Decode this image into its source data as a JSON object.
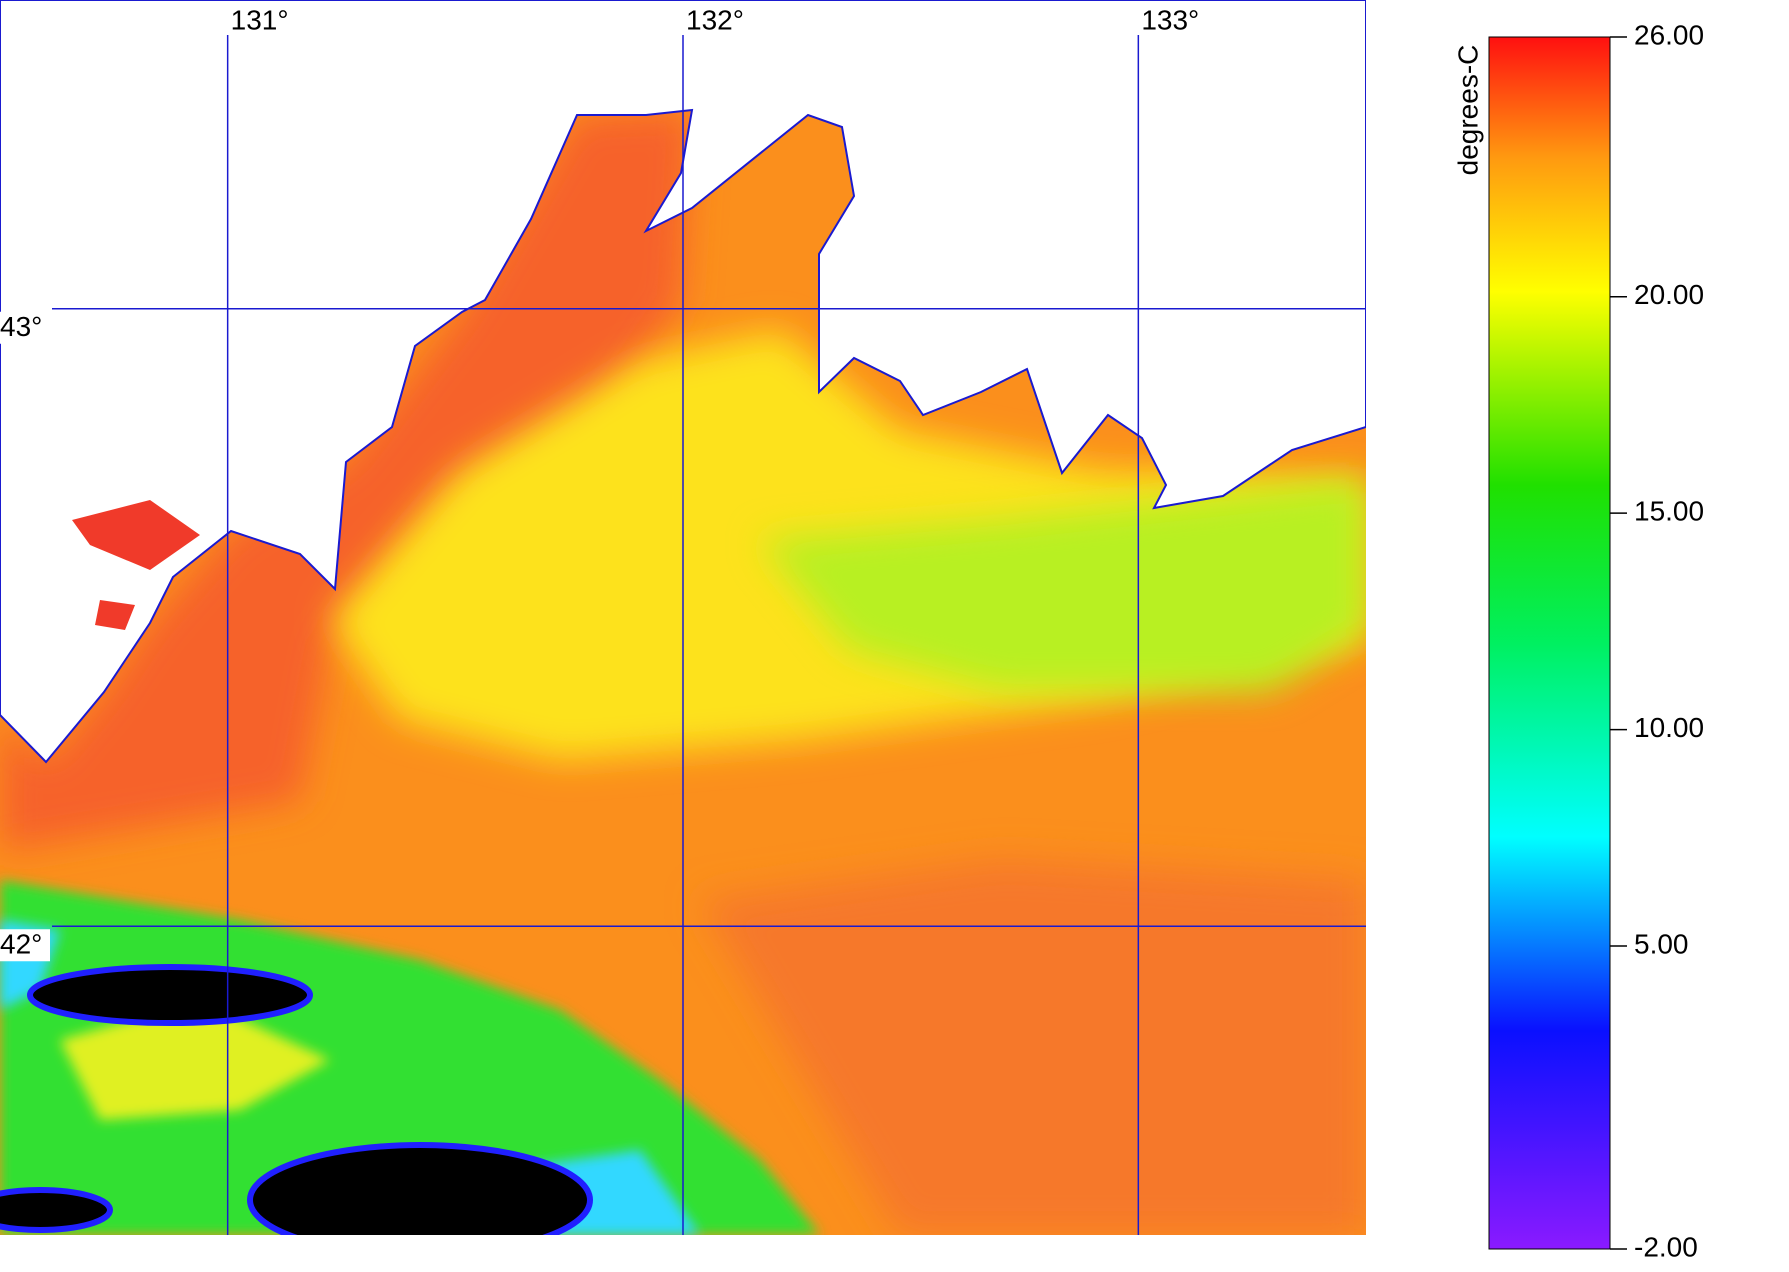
{
  "chart_data": {
    "type": "map",
    "xlim": [
      130.5,
      133.5
    ],
    "ylim": [
      41.5,
      43.5
    ],
    "xticks": [
      {
        "value": 131,
        "label": "131°"
      },
      {
        "value": 132,
        "label": "132°"
      },
      {
        "value": 133,
        "label": "133°"
      }
    ],
    "yticks": [
      {
        "value": 43,
        "label": "43°"
      },
      {
        "value": 42,
        "label": "42°"
      }
    ],
    "grid_color": "#1a1ad0",
    "colorbar": {
      "label": "degrees-C",
      "lim": [
        -2,
        26
      ],
      "ticks": [
        {
          "value": 26,
          "label": "26.00"
        },
        {
          "value": 20,
          "label": "20.00"
        },
        {
          "value": 15,
          "label": "15.00"
        },
        {
          "value": 10,
          "label": "10.00"
        },
        {
          "value": 5,
          "label": "5.00"
        },
        {
          "value": -2,
          "label": "-2.00"
        }
      ]
    }
  }
}
